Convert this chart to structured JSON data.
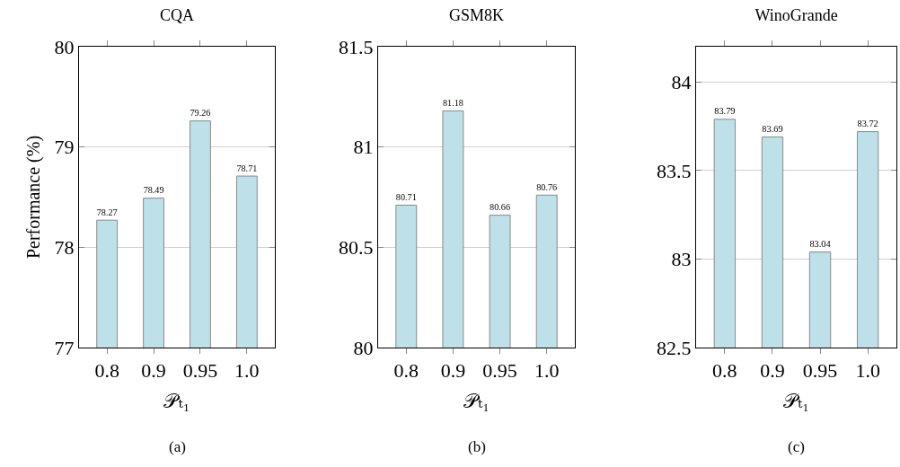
{
  "chart_data": [
    {
      "type": "bar",
      "title": "CQA",
      "xlabel": "𝒫ₜ₁",
      "ylabel": "Performance (%)",
      "categories": [
        "0.8",
        "0.9",
        "0.95",
        "1.0"
      ],
      "series": [
        {
          "color": "#bde0e9",
          "values": [
            78.27,
            78.49,
            79.26,
            78.71
          ]
        }
      ],
      "ylim": [
        77,
        80
      ],
      "yticks": [
        77,
        78,
        79,
        80
      ],
      "grid": "y",
      "data_labels": true,
      "annotations": [
        "(a)"
      ]
    },
    {
      "type": "bar",
      "title": "GSM8K",
      "xlabel": "𝒫ₜ₁",
      "categories": [
        "0.8",
        "0.9",
        "0.95",
        "1.0"
      ],
      "series": [
        {
          "color": "#bde0e9",
          "values": [
            80.71,
            81.18,
            80.66,
            80.76
          ]
        }
      ],
      "ylim": [
        80,
        81.5
      ],
      "yticks": [
        80,
        80.5,
        81,
        81.5
      ],
      "grid": "y",
      "data_labels": true,
      "annotations": [
        "(b)"
      ]
    },
    {
      "type": "bar",
      "title": "WinoGrande",
      "xlabel": "𝒫ₜ₁",
      "categories": [
        "0.8",
        "0.9",
        "0.95",
        "1.0"
      ],
      "series": [
        {
          "color": "#bde0e9",
          "values": [
            83.79,
            83.69,
            83.04,
            83.72
          ]
        }
      ],
      "ylim": [
        82.5,
        84.2
      ],
      "yticks": [
        82.5,
        83,
        83.5,
        84
      ],
      "grid": "y",
      "data_labels": true,
      "annotations": [
        "(c)"
      ]
    }
  ]
}
